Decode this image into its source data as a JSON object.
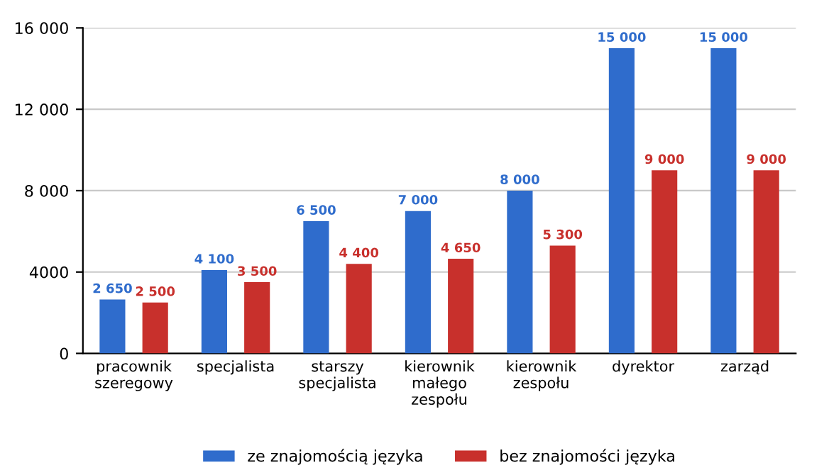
{
  "chart_data": {
    "type": "bar",
    "categories": [
      "pracownik\nszeregowy",
      "specjalista",
      "starszy\nspecjalista",
      "kierownik\nmałego\nzespołu",
      "kierownik\nzespołu",
      "dyrektor",
      "zarząd"
    ],
    "series": [
      {
        "name": "ze znajomością języka",
        "color": "#2f6ccc",
        "values": [
          2650,
          4100,
          6500,
          7000,
          8000,
          15000,
          15000
        ],
        "value_labels": [
          "2 650",
          "4 100",
          "6 500",
          "7 000",
          "8 000",
          "15 000",
          "15 000"
        ]
      },
      {
        "name": "bez znajomości języka",
        "color": "#c8302c",
        "values": [
          2500,
          3500,
          4400,
          4650,
          5300,
          9000,
          9000
        ],
        "value_labels": [
          "2 500",
          "3 500",
          "4 400",
          "4 650",
          "5 300",
          "9 000",
          "9 000"
        ]
      }
    ],
    "ylim": [
      0,
      16000
    ],
    "yticks": [
      {
        "value": 0,
        "label": "0"
      },
      {
        "value": 4000,
        "label": "4000"
      },
      {
        "value": 8000,
        "label": "8 000"
      },
      {
        "value": 12000,
        "label": "12 000"
      },
      {
        "value": 16000,
        "label": "16 000"
      }
    ],
    "grid": "y",
    "legend": "bottom"
  }
}
